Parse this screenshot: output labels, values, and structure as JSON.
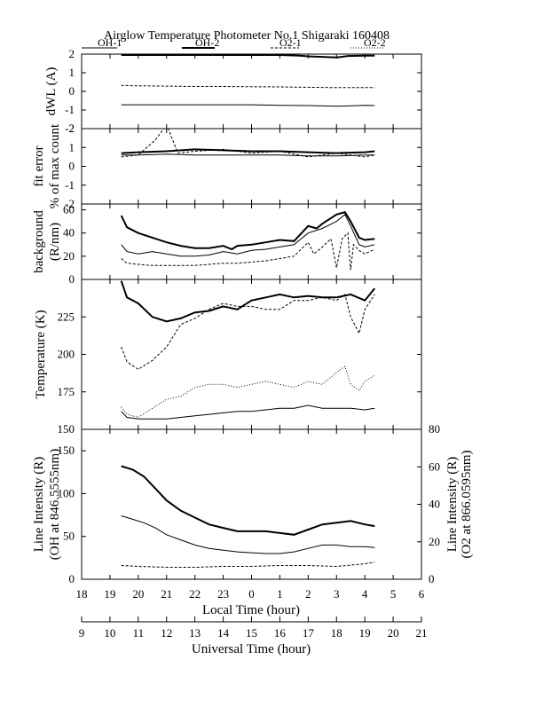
{
  "chart_data": {
    "type": "line",
    "title": "Airglow Temperature Photometer No.1  Shigaraki   160408",
    "legend": [
      {
        "name": "OH-1",
        "style": "solid-thin"
      },
      {
        "name": "OH-2",
        "style": "solid-thick"
      },
      {
        "name": "O2-1",
        "style": "dashed"
      },
      {
        "name": "O2-2",
        "style": "dotted"
      }
    ],
    "x_local": {
      "label": "Local Time (hour)",
      "ticks": [
        "18",
        "19",
        "20",
        "21",
        "22",
        "23",
        "0",
        "1",
        "2",
        "3",
        "4",
        "5",
        "6"
      ]
    },
    "x_universal": {
      "label": "Universal Time (hour)",
      "ticks": [
        "9",
        "10",
        "11",
        "12",
        "13",
        "14",
        "15",
        "16",
        "17",
        "18",
        "19",
        "20",
        "21"
      ]
    },
    "panels": [
      {
        "id": "dwl",
        "ylabel": "dWL (A)",
        "ylim": [
          -2,
          2
        ],
        "yticks": [
          "2",
          "1",
          "0",
          "-1",
          "-2"
        ],
        "series": [
          {
            "name": "OH-1",
            "x": [
              19.4,
              20,
              21,
              22,
              23,
              24,
              25,
              26,
              27,
              28,
              28.35
            ],
            "y": [
              -0.72,
              -0.72,
              -0.72,
              -0.72,
              -0.72,
              -0.72,
              -0.75,
              -0.76,
              -0.8,
              -0.75,
              -0.76
            ]
          },
          {
            "name": "O2-1",
            "x": [
              19.4,
              20,
              21,
              22,
              23,
              24,
              25,
              26,
              27,
              28,
              28.35
            ],
            "y": [
              0.32,
              0.3,
              0.28,
              0.26,
              0.26,
              0.25,
              0.24,
              0.22,
              0.2,
              0.2,
              0.2
            ]
          },
          {
            "name": "OH-2",
            "x": [
              19.4,
              20,
              21,
              22,
              23,
              24,
              25,
              25.7,
              26,
              26.5,
              27,
              27.4,
              28,
              28.35
            ],
            "y": [
              1.95,
              1.95,
              1.95,
              1.95,
              1.95,
              1.95,
              1.95,
              1.92,
              1.88,
              1.85,
              1.82,
              1.9,
              1.92,
              1.92
            ]
          }
        ]
      },
      {
        "id": "fit",
        "ylabel": "fit error",
        "ylabel2": "% of max count",
        "ylim": [
          -2,
          2
        ],
        "yticks": [
          "2",
          "1",
          "0",
          "-1",
          "-2"
        ],
        "tick_values": [
          2,
          0
        ],
        "tick_labels": [
          "2",
          "0"
        ],
        "series": [
          {
            "name": "OH-1",
            "x": [
              19.4,
              20,
              21,
              22,
              23,
              24,
              25,
              26,
              27,
              28,
              28.35
            ],
            "y": [
              0.6,
              0.6,
              0.65,
              0.6,
              0.6,
              0.6,
              0.6,
              0.55,
              0.55,
              0.6,
              0.6
            ]
          },
          {
            "name": "OH-2",
            "x": [
              19.4,
              20,
              21,
              22,
              23,
              24,
              25,
              26,
              27,
              28,
              28.35
            ],
            "y": [
              0.7,
              0.75,
              0.8,
              0.9,
              0.85,
              0.8,
              0.8,
              0.75,
              0.7,
              0.75,
              0.8
            ]
          },
          {
            "name": "O2-1",
            "x": [
              19.4,
              20,
              20.6,
              21,
              21.4,
              22,
              23,
              24,
              25,
              26,
              27,
              28,
              28.35
            ],
            "y": [
              0.5,
              0.6,
              1.4,
              2.2,
              0.7,
              0.8,
              0.9,
              0.7,
              0.8,
              0.5,
              0.7,
              0.5,
              0.6
            ]
          }
        ]
      },
      {
        "id": "bg",
        "ylabel": "background",
        "ylabel2": "(R/nm)",
        "ylim": [
          0,
          65
        ],
        "yticks": [
          "60",
          "40",
          "20",
          "0"
        ],
        "series": [
          {
            "name": "OH-2",
            "x": [
              19.4,
              19.6,
              20,
              20.5,
              21,
              21.5,
              22,
              22.5,
              23,
              23.3,
              23.5,
              24,
              24.5,
              25,
              25.5,
              26,
              26.3,
              26.5,
              27,
              27.3,
              27.5,
              27.8,
              28,
              28.35
            ],
            "y": [
              55,
              45,
              40,
              36,
              32,
              29,
              27,
              27,
              29,
              26,
              29,
              30,
              32,
              34,
              33,
              46,
              44,
              48,
              56,
              58,
              50,
              36,
              34,
              35
            ]
          },
          {
            "name": "OH-1",
            "x": [
              19.4,
              19.6,
              20,
              20.5,
              21,
              21.5,
              22,
              22.5,
              23,
              23.5,
              24,
              24.5,
              25,
              25.5,
              26,
              26.5,
              27,
              27.3,
              27.5,
              27.8,
              28,
              28.35
            ],
            "y": [
              30,
              24,
              22,
              24,
              22,
              20,
              20,
              21,
              24,
              22,
              25,
              26,
              28,
              30,
              40,
              44,
              50,
              56,
              46,
              30,
              28,
              30
            ]
          },
          {
            "name": "O2-1",
            "x": [
              19.4,
              19.6,
              20,
              20.5,
              21,
              21.5,
              22,
              22.5,
              23,
              23.5,
              24,
              24.5,
              25,
              25.5,
              26,
              26.2,
              26.5,
              26.8,
              27,
              27.2,
              27.4,
              27.5,
              27.6,
              27.8,
              28,
              28.35
            ],
            "y": [
              18,
              14,
              13,
              12,
              12,
              12,
              12,
              13,
              14,
              14,
              15,
              16,
              18,
              20,
              32,
              22,
              28,
              35,
              10,
              35,
              40,
              8,
              30,
              25,
              22,
              26
            ]
          }
        ]
      },
      {
        "id": "temp",
        "ylabel": "Temperature (K)",
        "ylim": [
          150,
          250
        ],
        "yticks": [
          "225",
          "200",
          "175",
          "150"
        ],
        "series": [
          {
            "name": "OH-2",
            "x": [
              19.4,
              19.6,
              20,
              20.5,
              21,
              21.5,
              22,
              22.5,
              23,
              23.5,
              24,
              24.5,
              25,
              25.5,
              26,
              26.5,
              27,
              27.5,
              28,
              28.35
            ],
            "y": [
              249,
              238,
              234,
              225,
              222,
              224,
              228,
              229,
              232,
              230,
              236,
              238,
              240,
              238,
              239,
              238,
              238,
              240,
              236,
              244
            ]
          },
          {
            "name": "O2-1",
            "x": [
              19.4,
              19.6,
              20,
              20.5,
              21,
              21.5,
              22,
              22.5,
              23,
              23.5,
              24,
              24.5,
              25,
              25.5,
              26,
              26.5,
              27,
              27.3,
              27.5,
              27.8,
              28,
              28.35
            ],
            "y": [
              205,
              195,
              190,
              196,
              205,
              220,
              224,
              230,
              234,
              232,
              232,
              230,
              230,
              236,
              236,
              238,
              236,
              240,
              225,
              214,
              230,
              240
            ]
          },
          {
            "name": "O2-2",
            "x": [
              19.4,
              19.6,
              20,
              20.5,
              21,
              21.5,
              22,
              22.5,
              23,
              23.5,
              24,
              24.5,
              25,
              25.5,
              26,
              26.5,
              27,
              27.3,
              27.5,
              27.8,
              28,
              28.35
            ],
            "y": [
              165,
              160,
              158,
              164,
              170,
              172,
              178,
              180,
              180,
              178,
              180,
              182,
              180,
              178,
              182,
              180,
              188,
              192,
              180,
              176,
              182,
              186
            ]
          },
          {
            "name": "OH-1",
            "x": [
              19.4,
              19.6,
              20,
              20.5,
              21,
              21.5,
              22,
              22.5,
              23,
              23.5,
              24,
              24.5,
              25,
              25.5,
              26,
              26.5,
              27,
              27.5,
              28,
              28.35
            ],
            "y": [
              162,
              158,
              157,
              157,
              157,
              158,
              159,
              160,
              161,
              162,
              162,
              163,
              164,
              164,
              166,
              164,
              164,
              164,
              163,
              164
            ]
          }
        ]
      },
      {
        "id": "int",
        "ylabel": "Line Intensity (R)",
        "ylabel2": "(OH at 846.5555nm)",
        "ylabel_right": "Line Intensity (R)",
        "ylabel_right2": "(O2 at 866.0595nm)",
        "ylim": [
          0,
          175
        ],
        "yticks": [
          "150",
          "100",
          "50",
          "0"
        ],
        "ylim_right": [
          0,
          80
        ],
        "yticks_right": [
          "80",
          "60",
          "40",
          "20",
          "0"
        ],
        "series": [
          {
            "name": "OH-2",
            "x": [
              19.4,
              19.8,
              20.2,
              20.6,
              21,
              21.5,
              22,
              22.5,
              23,
              23.5,
              24,
              24.5,
              25,
              25.5,
              26,
              26.5,
              27,
              27.5,
              28,
              28.35
            ],
            "y": [
              132,
              128,
              120,
              106,
              92,
              80,
              72,
              64,
              60,
              56,
              56,
              56,
              54,
              52,
              58,
              64,
              66,
              68,
              64,
              62
            ]
          },
          {
            "name": "OH-1",
            "x": [
              19.4,
              19.8,
              20.2,
              20.6,
              21,
              21.5,
              22,
              22.5,
              23,
              23.5,
              24,
              24.5,
              25,
              25.5,
              26,
              26.5,
              27,
              27.5,
              28,
              28.35
            ],
            "y": [
              74,
              70,
              66,
              60,
              52,
              46,
              40,
              36,
              34,
              32,
              31,
              30,
              30,
              32,
              36,
              40,
              40,
              38,
              38,
              37
            ]
          },
          {
            "name": "O2-1",
            "x": [
              19.4,
              20,
              21,
              22,
              23,
              24,
              25,
              26,
              27,
              28,
              28.35
            ],
            "y": [
              16,
              15,
              14,
              14,
              15,
              15,
              16,
              16,
              15,
              18,
              20
            ]
          }
        ]
      }
    ]
  }
}
